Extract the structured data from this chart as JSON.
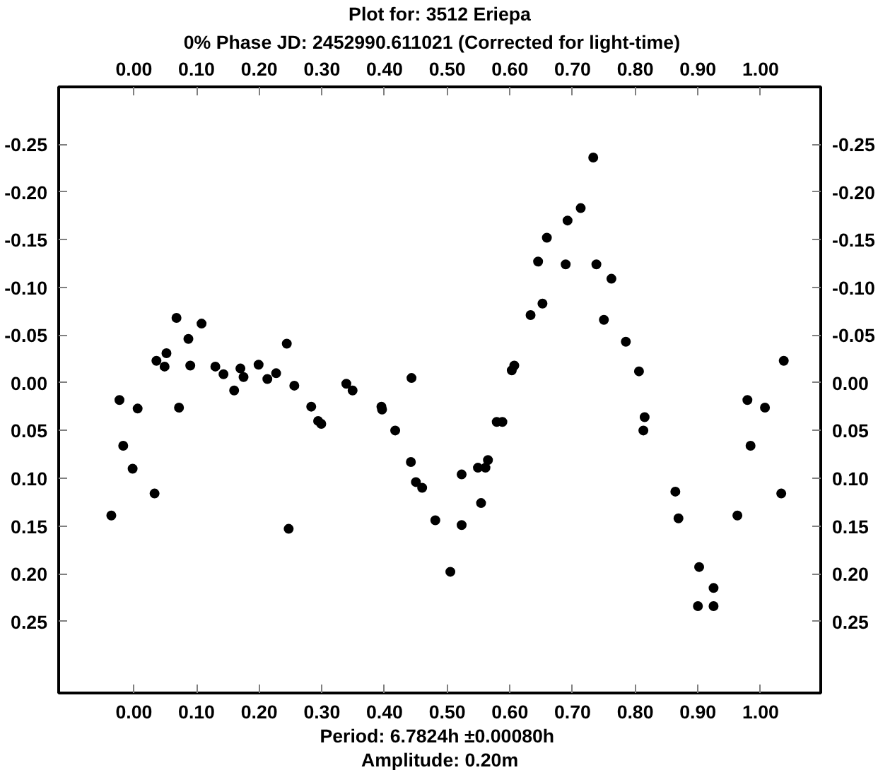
{
  "chart_data": {
    "type": "scatter",
    "title": "Plot for: 3512 Eriepa",
    "subtitle": "0% Phase JD:  2452990.611021   (Corrected for light-time)",
    "annotations": [
      "Period: 6.7824h  ±0.00080h",
      "Amplitude: 0.20m"
    ],
    "x": [
      -0.036,
      -0.023,
      -0.017,
      -0.002,
      0.006,
      0.033,
      0.036,
      0.049,
      0.052,
      0.068,
      0.072,
      0.087,
      0.09,
      0.108,
      0.13,
      0.143,
      0.16,
      0.17,
      0.175,
      0.199,
      0.213,
      0.227,
      0.244,
      0.247,
      0.256,
      0.283,
      0.294,
      0.299,
      0.339,
      0.349,
      0.395,
      0.396,
      0.417,
      0.442,
      0.443,
      0.45,
      0.46,
      0.481,
      0.505,
      0.523,
      0.523,
      0.549,
      0.554,
      0.561,
      0.565,
      0.579,
      0.588,
      0.603,
      0.607,
      0.633,
      0.645,
      0.652,
      0.659,
      0.689,
      0.692,
      0.713,
      0.733,
      0.738,
      0.75,
      0.762,
      0.785,
      0.806,
      0.813,
      0.815,
      0.864,
      0.869,
      0.902,
      0.9,
      0.925,
      0.925,
      0.963,
      0.979,
      0.984,
      1.007,
      1.033,
      1.037
    ],
    "series": [
      {
        "color": "#000000",
        "values": [
          0.139,
          0.018,
          0.066,
          0.09,
          0.027,
          0.116,
          -0.023,
          -0.017,
          -0.031,
          -0.068,
          0.026,
          -0.046,
          -0.018,
          -0.062,
          -0.017,
          -0.009,
          0.008,
          -0.015,
          -0.006,
          -0.019,
          -0.004,
          -0.01,
          -0.041,
          0.153,
          0.003,
          0.025,
          0.04,
          0.043,
          0.001,
          0.008,
          0.025,
          0.028,
          0.05,
          0.083,
          -0.005,
          0.104,
          0.11,
          0.144,
          0.198,
          0.096,
          0.149,
          0.089,
          0.126,
          0.089,
          0.081,
          0.041,
          0.041,
          -0.013,
          -0.018,
          -0.071,
          -0.127,
          -0.083,
          -0.152,
          -0.124,
          -0.17,
          -0.183,
          -0.236,
          -0.124,
          -0.066,
          -0.109,
          -0.043,
          -0.012,
          0.05,
          0.036,
          0.114,
          0.142,
          0.193,
          0.234,
          0.215,
          0.234,
          0.139,
          0.018,
          0.066,
          0.026,
          0.116,
          -0.023
        ]
      }
    ],
    "marker": "circle",
    "grid": false,
    "xlim": [
      -0.12,
      1.096
    ],
    "ylim": [
      0.325,
      -0.31
    ],
    "xticks": [
      {
        "value": 0,
        "label": "0.00"
      },
      {
        "value": 0.1,
        "label": "0.10"
      },
      {
        "value": 0.2,
        "label": "0.20"
      },
      {
        "value": 0.3,
        "label": "0.30"
      },
      {
        "value": 0.4,
        "label": "0.40"
      },
      {
        "value": 0.5,
        "label": "0.50"
      },
      {
        "value": 0.6,
        "label": "0.60"
      },
      {
        "value": 0.7,
        "label": "0.70"
      },
      {
        "value": 0.8,
        "label": "0.80"
      },
      {
        "value": 0.9,
        "label": "0.90"
      },
      {
        "value": 1,
        "label": "1.00"
      }
    ],
    "x2lim": [
      -0.12,
      1.096
    ],
    "x2ticks": [
      {
        "value": 0,
        "label": "0.00"
      },
      {
        "value": 0.1,
        "label": "0.10"
      },
      {
        "value": 0.2,
        "label": "0.20"
      },
      {
        "value": 0.3,
        "label": "0.30"
      },
      {
        "value": 0.4,
        "label": "0.40"
      },
      {
        "value": 0.5,
        "label": "0.50"
      },
      {
        "value": 0.6,
        "label": "0.60"
      },
      {
        "value": 0.7,
        "label": "0.70"
      },
      {
        "value": 0.8,
        "label": "0.80"
      },
      {
        "value": 0.9,
        "label": "0.90"
      },
      {
        "value": 1,
        "label": "1.00"
      }
    ],
    "yticks": [
      {
        "value": -0.25,
        "label": "-0.25"
      },
      {
        "value": -0.2,
        "label": "-0.20"
      },
      {
        "value": -0.15,
        "label": "-0.15"
      },
      {
        "value": -0.1,
        "label": "-0.10"
      },
      {
        "value": -0.05,
        "label": "-0.05"
      },
      {
        "value": 0,
        "label": "0.00"
      },
      {
        "value": 0.05,
        "label": "0.05"
      },
      {
        "value": 0.1,
        "label": "0.10"
      },
      {
        "value": 0.15,
        "label": "0.15"
      },
      {
        "value": 0.2,
        "label": "0.20"
      },
      {
        "value": 0.25,
        "label": "0.25"
      }
    ],
    "y2lim": [
      0.325,
      -0.31
    ],
    "y2ticks": [
      {
        "value": -0.25,
        "label": "-0.25"
      },
      {
        "value": -0.2,
        "label": "-0.20"
      },
      {
        "value": -0.15,
        "label": "-0.15"
      },
      {
        "value": -0.1,
        "label": "-0.10"
      },
      {
        "value": -0.05,
        "label": "-0.05"
      },
      {
        "value": 0,
        "label": "0.00"
      },
      {
        "value": 0.05,
        "label": "0.05"
      },
      {
        "value": 0.1,
        "label": "0.10"
      },
      {
        "value": 0.15,
        "label": "0.15"
      },
      {
        "value": 0.2,
        "label": "0.20"
      },
      {
        "value": 0.25,
        "label": "0.25"
      }
    ]
  }
}
